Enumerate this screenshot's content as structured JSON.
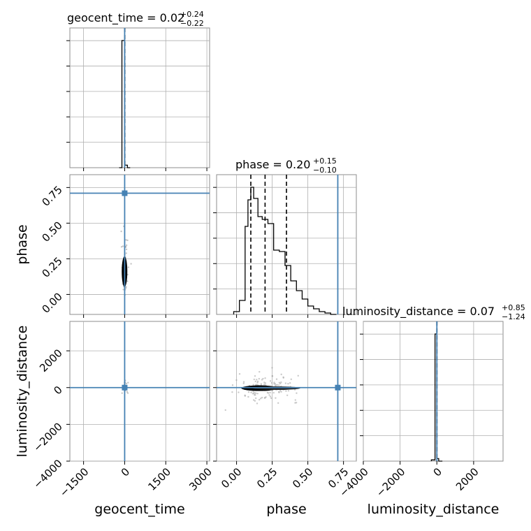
{
  "colors": {
    "truth": "#4682b4",
    "hist": "#000000",
    "grid": "#b0b0b0",
    "scatter": "#9e9e9e"
  },
  "chart_data": {
    "type": "corner",
    "parameters": [
      "geocent_time",
      "phase",
      "luminosity_distance"
    ],
    "axes": {
      "geocent_time": {
        "label": "geocent_time",
        "range": [
          -2000,
          3100
        ],
        "ticks": [
          -1500,
          0,
          1500,
          3000
        ],
        "tick_labels": [
          "−1500",
          "0",
          "1500",
          "3000"
        ]
      },
      "phase": {
        "label": "phase",
        "range": [
          -0.14,
          0.84
        ],
        "ticks": [
          0.0,
          0.25,
          0.5,
          0.75
        ],
        "tick_labels": [
          "0.00",
          "0.25",
          "0.50",
          "0.75"
        ]
      },
      "luminosity_distance": {
        "label": "luminosity_distance",
        "range": [
          -4000,
          3600
        ],
        "ticks": [
          -4000,
          -2000,
          0,
          2000
        ],
        "tick_labels": [
          "−4000",
          "−2000",
          "0",
          "2000"
        ]
      }
    },
    "truths": {
      "geocent_time": 0,
      "phase": 0.71,
      "luminosity_distance": 0
    },
    "titles": {
      "geocent_time": {
        "name": "geocent_time",
        "median": "0.02",
        "plus": "+0.24",
        "minus": "−0.22"
      },
      "phase": {
        "name": "phase",
        "median": "0.20",
        "plus": "+0.15",
        "minus": "−0.10"
      },
      "luminosity_distance": {
        "name": "luminosity_distance",
        "median": "0.07",
        "plus": "+0.85",
        "minus": "−1.24"
      }
    },
    "diagonal_histograms": {
      "geocent_time": {
        "bin_edges": [
          -200,
          -100,
          0,
          100,
          200
        ],
        "counts": [
          0,
          100,
          2,
          0
        ]
      },
      "phase": {
        "bin_edges": [
          -0.02,
          0.02,
          0.06,
          0.08,
          0.1,
          0.12,
          0.15,
          0.18,
          0.22,
          0.26,
          0.3,
          0.34,
          0.38,
          0.42,
          0.46,
          0.5,
          0.54,
          0.58,
          0.62,
          0.66,
          0.7
        ],
        "counts": [
          2,
          10,
          63,
          82,
          91,
          83,
          70,
          68,
          65,
          46,
          45,
          35,
          24,
          17,
          11,
          6,
          4,
          2,
          1,
          0
        ]
      },
      "luminosity_distance": {
        "bin_edges": [
          -300,
          -100,
          0,
          100,
          300
        ],
        "counts": [
          1,
          100,
          2,
          0
        ]
      }
    },
    "quantile_lines": {
      "geocent_time": [
        -0.2,
        0.02,
        0.26
      ],
      "phase": [
        0.1,
        0.2,
        0.35
      ],
      "luminosity_distance": [
        -1.17,
        0.07,
        0.92
      ]
    },
    "grid": true
  }
}
